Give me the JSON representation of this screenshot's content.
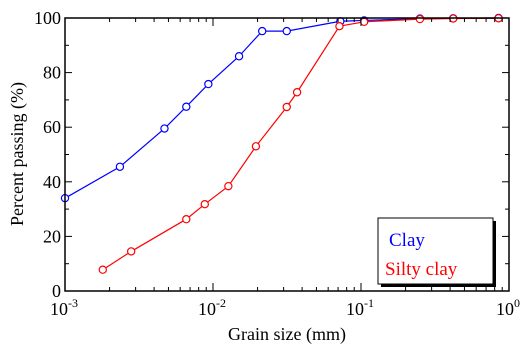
{
  "chart_data": {
    "type": "line",
    "xlabel": "Grain size (mm)",
    "ylabel": "Percent passing (%)",
    "x_scale": "log",
    "xlim": [
      0.001,
      1
    ],
    "ylim": [
      0,
      100
    ],
    "x_ticks": [
      {
        "value": 0.001,
        "base": "10",
        "exp": "-3"
      },
      {
        "value": 0.01,
        "base": "10",
        "exp": "-2"
      },
      {
        "value": 0.1,
        "base": "10",
        "exp": "-1"
      },
      {
        "value": 1,
        "base": "10",
        "exp": "0"
      }
    ],
    "y_ticks": [
      0,
      20,
      40,
      60,
      80,
      100
    ],
    "grid": false,
    "legend_position": "bottom-right",
    "series": [
      {
        "name": "Clay",
        "color": "#0000ff",
        "marker": "open-circle",
        "x": [
          0.001,
          0.00235,
          0.0047,
          0.0066,
          0.0093,
          0.015,
          0.0215,
          0.0315,
          0.0725,
          0.105,
          0.25,
          0.42,
          0.85
        ],
        "y": [
          34,
          45.5,
          59.5,
          67.5,
          75.8,
          86,
          95.2,
          95.2,
          98.8,
          99.1,
          99.8,
          99.9,
          100
        ]
      },
      {
        "name": "Silty clay",
        "color": "#ff0000",
        "marker": "open-circle",
        "x": [
          0.0018,
          0.0028,
          0.0066,
          0.0088,
          0.0127,
          0.0195,
          0.0315,
          0.037,
          0.0715,
          0.105,
          0.25,
          0.42,
          0.85
        ],
        "y": [
          7.8,
          14.5,
          26.3,
          31.8,
          38.4,
          53,
          67.4,
          72.8,
          97,
          98.6,
          99.6,
          99.8,
          99.9
        ]
      }
    ]
  }
}
